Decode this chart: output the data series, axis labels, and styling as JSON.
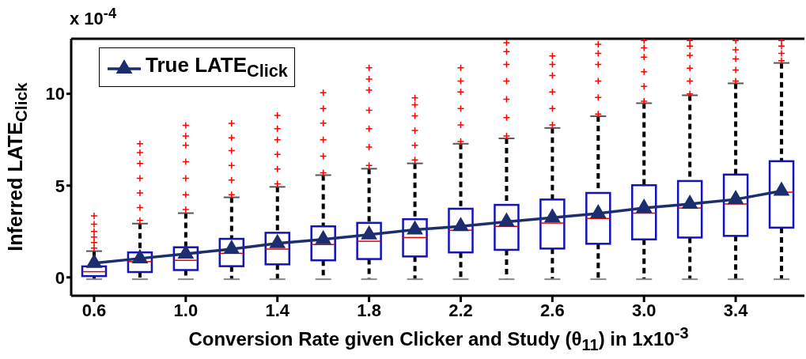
{
  "chart_data": {
    "type": "box",
    "xlabel": "Conversion Rate given Clicker and Study (θ$_{11}$) in 1x10$^{-3}$",
    "ylabel": "Inferred  LATE$_{Click}$",
    "annotations": [
      "x 10$^{-4}$"
    ],
    "categories": [
      "0.6",
      null,
      "1.0",
      null,
      "1.4",
      null,
      "1.8",
      null,
      "2.2",
      null,
      "2.6",
      null,
      "3.0",
      null,
      "3.4",
      null
    ],
    "ylim": [
      -1,
      13
    ],
    "yticks": [
      0,
      5,
      10
    ],
    "legend": "top left",
    "grid": false,
    "series": [
      {
        "color": "#1414b4",
        "boxes": [
          {
            "low": -0.1,
            "q1": 0.07,
            "median": 0.31,
            "q3": 0.6,
            "high": 1.43,
            "outliers": [
              1.6,
              1.9,
              2.2,
              2.5,
              2.9,
              3.35
            ]
          },
          {
            "low": -0.1,
            "q1": 0.29,
            "median": 0.86,
            "q3": 1.36,
            "high": 2.93,
            "outliers": [
              3.1,
              3.8,
              4.6,
              5.4,
              6.2,
              6.8,
              7.28
            ]
          },
          {
            "low": -0.1,
            "q1": 0.4,
            "median": 0.93,
            "q3": 1.64,
            "high": 3.5,
            "outliers": [
              3.7,
              4.5,
              5.4,
              6.3,
              7.2,
              7.7,
              8.28
            ]
          },
          {
            "low": -0.1,
            "q1": 0.61,
            "median": 1.31,
            "q3": 2.1,
            "high": 4.36,
            "outliers": [
              4.5,
              5.3,
              6.1,
              6.9,
              7.6,
              8.39
            ]
          },
          {
            "low": -0.1,
            "q1": 0.71,
            "median": 1.54,
            "q3": 2.43,
            "high": 4.93,
            "outliers": [
              5.1,
              5.9,
              6.7,
              7.5,
              8.1,
              8.82
            ]
          },
          {
            "low": -0.1,
            "q1": 0.93,
            "median": 1.79,
            "q3": 2.78,
            "high": 5.57,
            "outliers": [
              5.7,
              6.6,
              7.5,
              8.4,
              9.2,
              10.06
            ]
          },
          {
            "low": -0.1,
            "q1": 1.0,
            "median": 1.97,
            "q3": 2.97,
            "high": 5.92,
            "outliers": [
              6.1,
              7.1,
              8.1,
              9.1,
              10.2,
              10.8,
              11.42
            ]
          },
          {
            "low": -0.1,
            "q1": 1.14,
            "median": 2.17,
            "q3": 3.17,
            "high": 6.21,
            "outliers": [
              6.4,
              7.2,
              8.0,
              8.8,
              9.4,
              9.78
            ]
          },
          {
            "low": -0.1,
            "q1": 1.36,
            "median": 2.57,
            "q3": 3.74,
            "high": 7.28,
            "outliers": [
              7.4,
              8.3,
              9.2,
              10.1,
              10.7,
              11.42
            ]
          },
          {
            "low": -0.1,
            "q1": 1.5,
            "median": 2.78,
            "q3": 3.95,
            "high": 7.57,
            "outliers": [
              7.7,
              8.7,
              9.7,
              10.7,
              11.6,
              12.3,
              12.78
            ]
          },
          {
            "low": -0.1,
            "q1": 1.57,
            "median": 2.96,
            "q3": 4.24,
            "high": 8.14,
            "outliers": [
              8.3,
              9.2,
              10.1,
              11.0,
              11.6,
              12.06
            ]
          },
          {
            "low": -0.1,
            "q1": 1.83,
            "median": 3.21,
            "q3": 4.6,
            "high": 8.78,
            "outliers": [
              8.9,
              9.8,
              10.7,
              11.6,
              12.2,
              12.7
            ]
          },
          {
            "low": -0.1,
            "q1": 2.07,
            "median": 3.5,
            "q3": 5.02,
            "high": 9.49,
            "outliers": [
              9.6,
              10.4,
              11.2,
              12.0,
              12.5,
              12.9
            ]
          },
          {
            "low": -0.1,
            "q1": 2.17,
            "median": 3.78,
            "q3": 5.25,
            "high": 9.92,
            "outliers": [
              10.0,
              10.7,
              11.4,
              12.1,
              12.6,
              12.9
            ]
          },
          {
            "low": -0.1,
            "q1": 2.26,
            "median": 4.0,
            "q3": 5.6,
            "high": 10.57,
            "outliers": [
              10.7,
              11.3,
              11.9,
              12.4,
              12.9
            ]
          },
          {
            "low": -0.1,
            "q1": 2.71,
            "median": 4.64,
            "q3": 6.33,
            "high": 11.68,
            "outliers": [
              11.8,
              12.2,
              12.6,
              12.9
            ]
          }
        ]
      },
      {
        "type": "line",
        "name": "True LATE$_{Click}$",
        "color": "#1c2e6e",
        "marker": "triangle",
        "values": [
          0.78,
          1.03,
          1.28,
          1.54,
          1.85,
          2.07,
          2.33,
          2.6,
          2.78,
          3.03,
          3.25,
          3.48,
          3.78,
          4.0,
          4.25,
          4.71
        ]
      }
    ]
  }
}
